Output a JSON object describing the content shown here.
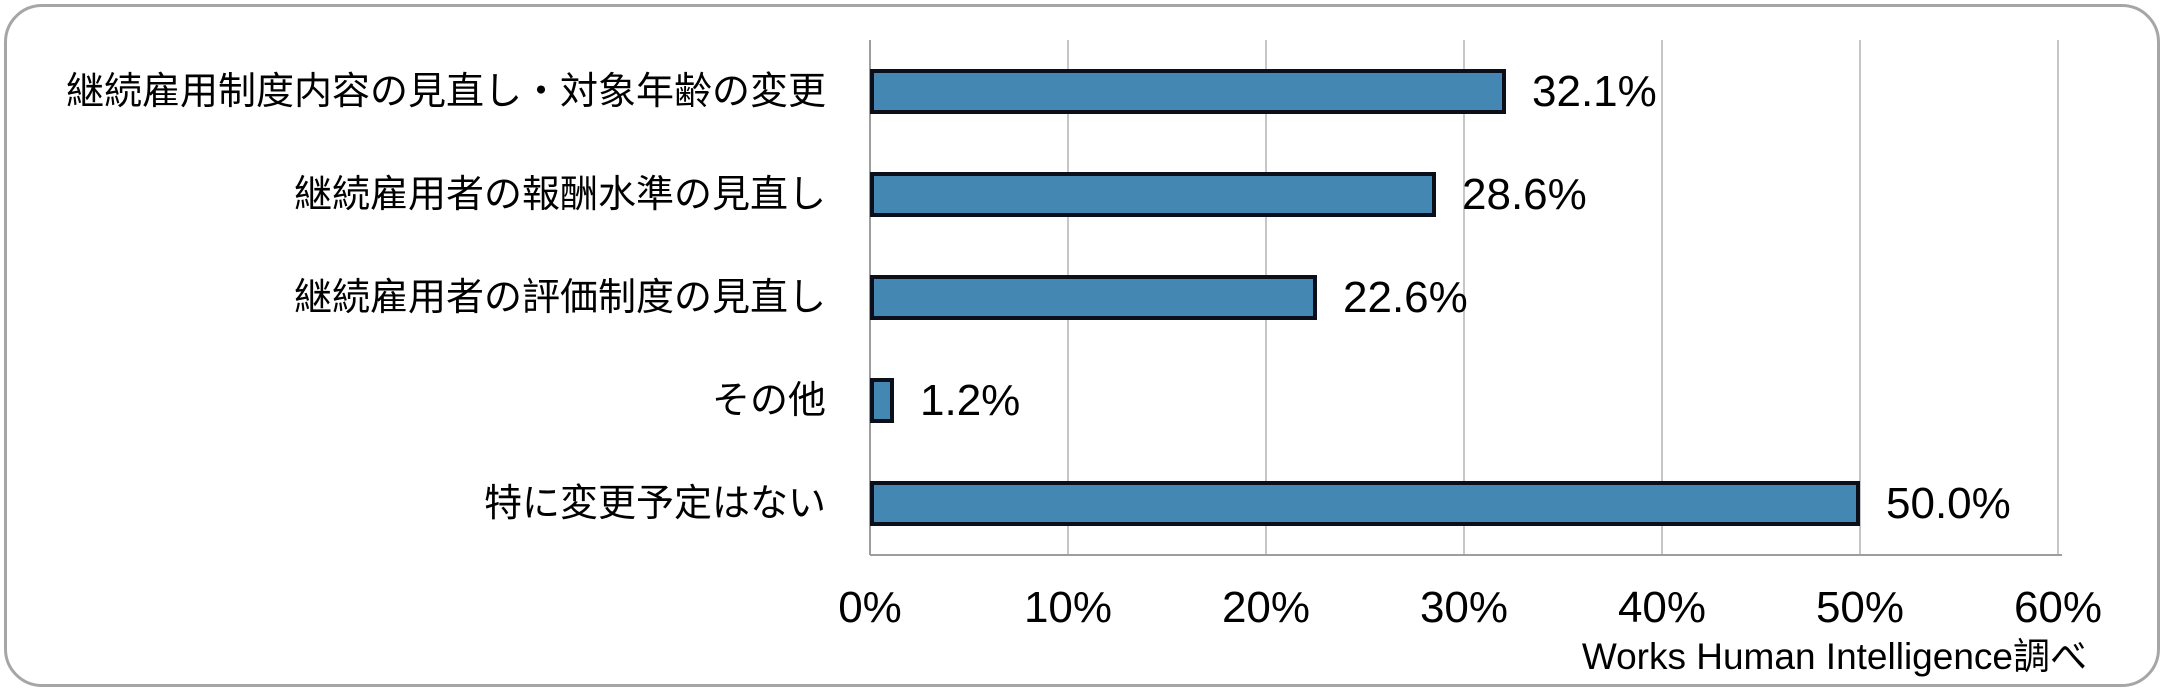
{
  "chart_data": {
    "type": "bar",
    "orientation": "horizontal",
    "title": "",
    "categories": [
      "継続雇用制度内容の見直し・対象年齢の変更",
      "継続雇用者の報酬水準の見直し",
      "継続雇用者の評価制度の見直し",
      "その他",
      "特に変更予定はない"
    ],
    "values": [
      32.1,
      28.6,
      22.6,
      1.2,
      50.0
    ],
    "value_labels": [
      "32.1%",
      "28.6%",
      "22.6%",
      "1.2%",
      "50.0%"
    ],
    "xlim": [
      0,
      60
    ],
    "x_ticks": [
      0,
      10,
      20,
      30,
      40,
      50,
      60
    ],
    "x_tick_labels": [
      "0%",
      "10%",
      "20%",
      "30%",
      "40%",
      "50%",
      "60%"
    ],
    "grid": true,
    "legend": false,
    "source_note": "Works Human Intelligence調べ",
    "colors": {
      "bar_fill": "#4587B3",
      "bar_border": "#0A0F1A",
      "gridline": "#C6C6C6",
      "axis_line": "#9E9E9E",
      "text": "#000000",
      "frame_border": "#A6A6A6"
    }
  }
}
